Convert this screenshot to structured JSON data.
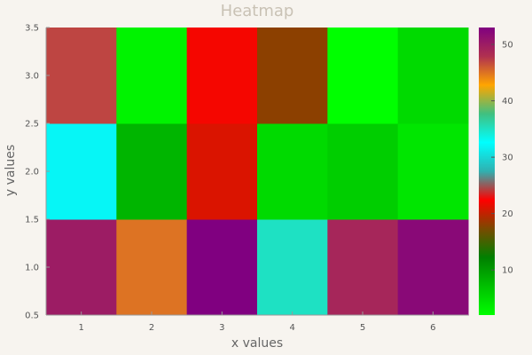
{
  "chart_data": {
    "type": "heatmap",
    "title": "Heatmap",
    "xlabel": "x values",
    "ylabel": "y values",
    "x": [
      1,
      2,
      3,
      4,
      5,
      6
    ],
    "y": [
      1.0,
      2.0,
      3.0
    ],
    "xticks": [
      "1",
      "2",
      "3",
      "4",
      "5",
      "6"
    ],
    "yticks": [
      "0.5",
      "1.0",
      "1.5",
      "2.0",
      "2.5",
      "3.0",
      "3.5"
    ],
    "ylim": [
      0.5,
      3.5
    ],
    "z": [
      [
        50,
        45,
        53,
        35,
        49,
        52
      ],
      [
        32,
        8,
        21,
        5,
        6,
        4
      ],
      [
        47,
        3,
        22,
        18,
        2,
        5
      ]
    ],
    "colorbar": {
      "min": 2,
      "max": 53,
      "ticks": [
        "10",
        "20",
        "30",
        "40",
        "50"
      ],
      "ticks_values": [
        10,
        20,
        30,
        40,
        50
      ]
    },
    "colorscale": [
      "#00ff00",
      "#00c000",
      "#008000",
      "#7a4a00",
      "#ff0000",
      "#30b0b0",
      "#00ffff",
      "#40c080",
      "#ffa500",
      "#b03050",
      "#800080"
    ],
    "colors": {
      "background": "#f7f4ef",
      "axis": "#999999"
    }
  }
}
